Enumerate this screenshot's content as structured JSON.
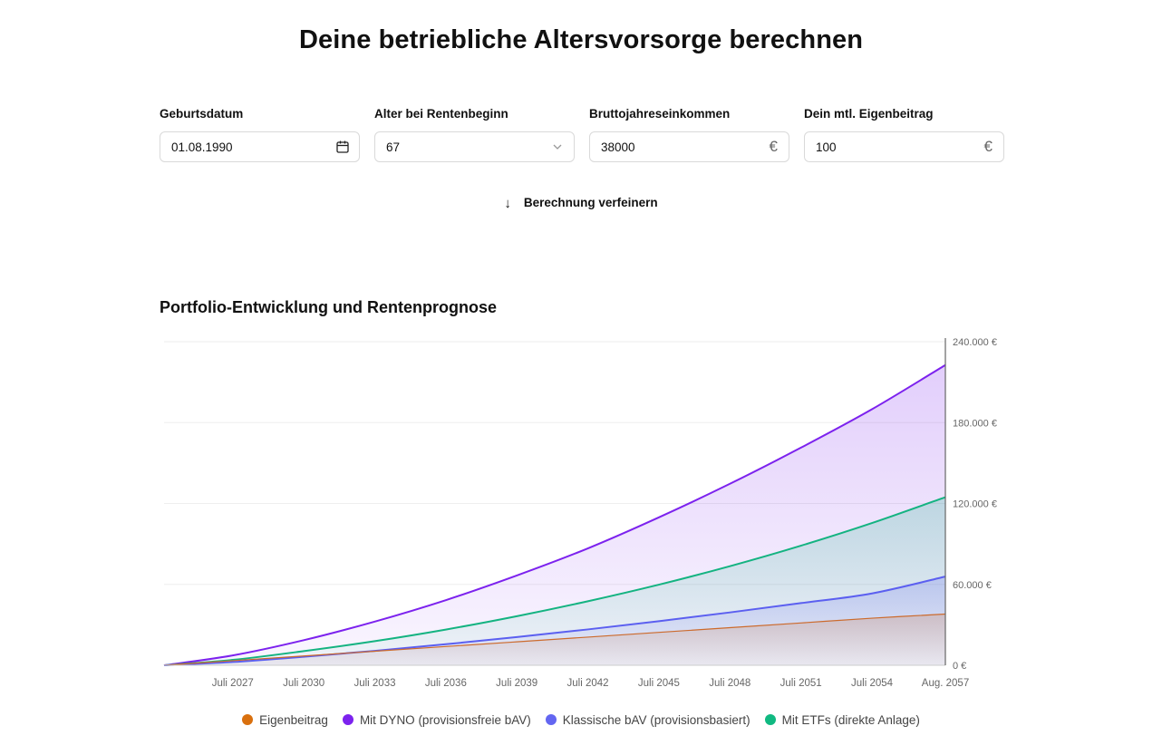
{
  "page": {
    "title": "Deine betriebliche Altersvorsorge berechnen"
  },
  "form": {
    "birthdate": {
      "label": "Geburtsdatum",
      "value": "01.08.1990",
      "icon": "calendar-icon"
    },
    "retirement_age": {
      "label": "Alter bei Rentenbeginn",
      "value": "67",
      "icon": "chevron-down-icon"
    },
    "gross_income": {
      "label": "Bruttojahreseinkommen",
      "value": "38000",
      "suffix": "€"
    },
    "monthly_contribution": {
      "label": "Dein mtl. Eigenbeitrag",
      "value": "100",
      "suffix": "€"
    },
    "refine": {
      "label": "Berechnung verfeinern",
      "icon": "arrow-down-icon"
    }
  },
  "chart_title": "Portfolio-Entwicklung und Rentenprognose",
  "chart_data": {
    "type": "area",
    "x_tick_labels": [
      "Juli 2027",
      "Juli 2030",
      "Juli 2033",
      "Juli 2036",
      "Juli 2039",
      "Juli 2042",
      "Juli 2045",
      "Juli 2048",
      "Juli 2051",
      "Juli 2054",
      "Aug. 2057"
    ],
    "x": [
      2024.6,
      2027.5,
      2030.5,
      2033.5,
      2036.5,
      2039.5,
      2042.5,
      2045.5,
      2048.5,
      2051.5,
      2054.5,
      2057.6
    ],
    "xlim": [
      2024.6,
      2057.6
    ],
    "y_tick_labels": [
      "0 €",
      "60.000 €",
      "120.000 €",
      "180.000 €",
      "240.000 €"
    ],
    "y_ticks": [
      0,
      60000,
      120000,
      180000,
      240000
    ],
    "ylim": [
      0,
      240000
    ],
    "y_axis_position": "right",
    "grid": "horizontal",
    "legend_position": "bottom",
    "series": [
      {
        "name": "Mit DYNO (provisionsfreie bAV)",
        "color": "#7c22ee",
        "values": [
          0,
          7300,
          18600,
          32400,
          48300,
          66600,
          86700,
          109700,
          134600,
          161400,
          189900,
          222700
        ]
      },
      {
        "name": "Mit ETFs (direkte Anlage)",
        "color": "#14b381",
        "values": [
          0,
          4000,
          10500,
          17900,
          26500,
          36400,
          47500,
          59800,
          73500,
          88700,
          105500,
          124700
        ]
      },
      {
        "name": "Klassische bAV (provisionsbasiert)",
        "color": "#5b5ff0",
        "values": [
          0,
          2400,
          6300,
          10700,
          15600,
          20900,
          26600,
          32700,
          39200,
          46100,
          53300,
          65800
        ]
      },
      {
        "name": "Eigenbeitrag",
        "color": "#cc6a2c",
        "values": [
          0,
          3400,
          6900,
          10400,
          13900,
          17400,
          20900,
          24400,
          27900,
          31400,
          34900,
          38000
        ]
      }
    ],
    "legend_order": [
      "Eigenbeitrag",
      "Mit DYNO (provisionsfreie bAV)",
      "Klassische bAV (provisionsbasiert)",
      "Mit ETFs (direkte Anlage)"
    ],
    "legend_colors": [
      "#d9700e",
      "#7c22ee",
      "#6366f1",
      "#10b981"
    ]
  }
}
